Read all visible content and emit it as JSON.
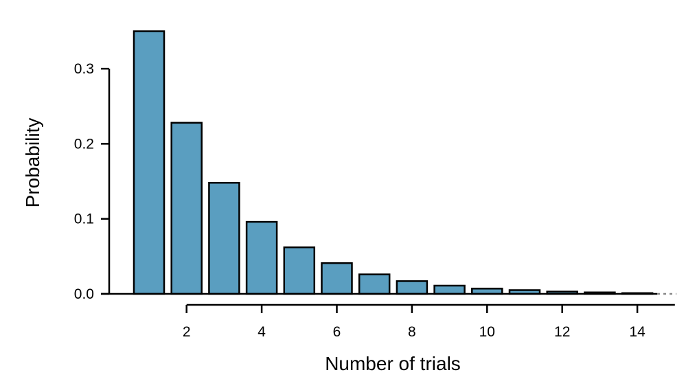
{
  "chart_data": {
    "type": "bar",
    "xlabel": "Number of trials",
    "ylabel": "Probability",
    "x": [
      1,
      2,
      3,
      4,
      5,
      6,
      7,
      8,
      9,
      10,
      11,
      12,
      13,
      14
    ],
    "values": [
      0.35,
      0.228,
      0.148,
      0.096,
      0.062,
      0.041,
      0.026,
      0.017,
      0.011,
      0.007,
      0.005,
      0.003,
      0.002,
      0.001
    ],
    "x_ticks": [
      "2",
      "4",
      "6",
      "8",
      "10",
      "12",
      "14"
    ],
    "y_ticks": [
      "0.0",
      "0.1",
      "0.2",
      "0.3"
    ],
    "xlim": [
      0.5,
      15
    ],
    "ylim": [
      0,
      0.35
    ],
    "continues_beyond_axis": true,
    "bar_color": "#5a9ec0",
    "grid": false,
    "legend": "none"
  }
}
